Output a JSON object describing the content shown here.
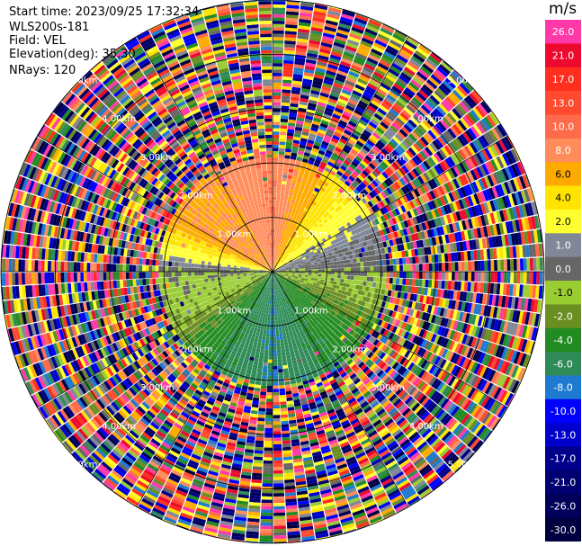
{
  "header": {
    "start_time": "Start time: 2023/09/25 17:32:34",
    "instrument": "WLS200s-181",
    "field": "Field: VEL",
    "elevation": "Elevation(deg): 35.30",
    "nrays": "NRays: 120"
  },
  "colorbar": {
    "unit": "m/s",
    "levels": [
      {
        "label": "26.0",
        "color": "#ff3aa8"
      },
      {
        "label": "21.0",
        "color": "#ee0a2e"
      },
      {
        "label": "17.0",
        "color": "#ff2e1e"
      },
      {
        "label": "13.0",
        "color": "#ff4a2e"
      },
      {
        "label": "10.0",
        "color": "#ff6a4a"
      },
      {
        "label": "8.0",
        "color": "#ff8c5a"
      },
      {
        "label": "6.0",
        "color": "#ffaa00"
      },
      {
        "label": "4.0",
        "color": "#ffe400"
      },
      {
        "label": "2.0",
        "color": "#ffff30"
      },
      {
        "label": "1.0",
        "color": "#808898"
      },
      {
        "label": "0.0",
        "color": "#666666"
      },
      {
        "label": "-1.0",
        "color": "#9acd32"
      },
      {
        "label": "-2.0",
        "color": "#6b8e23"
      },
      {
        "label": "-4.0",
        "color": "#228b22"
      },
      {
        "label": "-6.0",
        "color": "#2e8b57"
      },
      {
        "label": "-8.0",
        "color": "#1e7ad0"
      },
      {
        "label": "-10.0",
        "color": "#0000ff"
      },
      {
        "label": "-13.0",
        "color": "#0000cd"
      },
      {
        "label": "-17.0",
        "color": "#00008b"
      },
      {
        "label": "-21.0",
        "color": "#000070"
      },
      {
        "label": "-26.0",
        "color": "#00005a"
      },
      {
        "label": "-30.0",
        "color": "#000040"
      }
    ]
  },
  "chart_data": {
    "type": "heatmap",
    "projection": "polar-ppi",
    "field": "VEL",
    "units": "m/s",
    "nrays": 120,
    "range_rings_km": [
      1.0,
      2.0,
      3.0,
      4.0,
      5.0
    ],
    "ring_labels": [
      "1.00km",
      "2.00km",
      "3.00km",
      "4.00km",
      "5.00km"
    ],
    "max_range_km": 5.0,
    "valid_range_km": 2.1,
    "spoke_angles_deg": [
      0,
      30,
      60,
      90,
      120,
      150,
      180,
      210,
      240,
      270,
      300,
      330
    ],
    "velocity_pattern_by_azimuth": [
      {
        "azimuth_deg": 300,
        "velocity": 8.0
      },
      {
        "azimuth_deg": 330,
        "velocity": 8.0
      },
      {
        "azimuth_deg": 0,
        "velocity": 10.0
      },
      {
        "azimuth_deg": 30,
        "velocity": 6.0
      },
      {
        "azimuth_deg": 60,
        "velocity": 2.0
      },
      {
        "azimuth_deg": 90,
        "velocity": 0.0
      },
      {
        "azimuth_deg": 120,
        "velocity": -2.0
      },
      {
        "azimuth_deg": 150,
        "velocity": -4.0
      },
      {
        "azimuth_deg": 180,
        "velocity": -6.0
      },
      {
        "azimuth_deg": 210,
        "velocity": -4.0
      },
      {
        "azimuth_deg": 240,
        "velocity": -1.0
      },
      {
        "azimuth_deg": 270,
        "velocity": 0.0
      }
    ]
  }
}
